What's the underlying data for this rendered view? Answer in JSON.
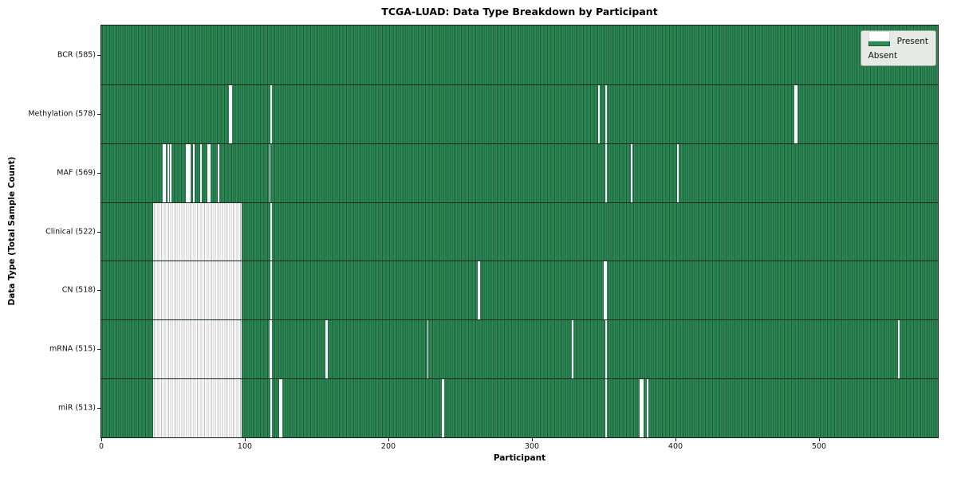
{
  "colors": {
    "present": "#2e8b57",
    "present_edge": "#1c5c39",
    "absent": "#ffffff",
    "absent_stripe": "#c3c3c3",
    "spine": "#1a1a1a",
    "legend_bg": "#e5eae5",
    "legend_border": "#9ea69e"
  },
  "chart_data": {
    "type": "heatmap",
    "title": "TCGA-LUAD: Data Type Breakdown by Participant",
    "xlabel": "Participant",
    "ylabel": "Data Type (Total Sample Count)",
    "legend": [
      "Present",
      "Absent"
    ],
    "legend_position": "upper right",
    "grid": false,
    "total_participants": 585,
    "xlim": [
      0,
      585
    ],
    "x_ticks": [
      0,
      100,
      200,
      300,
      400,
      500
    ],
    "rows": [
      {
        "name": "BCR",
        "label": "BCR (585)",
        "present_count": 585,
        "absent_runs": []
      },
      {
        "name": "Methylation",
        "label": "Methylation (578)",
        "present_count": 578,
        "absent_runs": [
          [
            89,
            90
          ],
          [
            118,
            118
          ],
          [
            346,
            346
          ],
          [
            351,
            351
          ],
          [
            483,
            484
          ]
        ]
      },
      {
        "name": "MAF",
        "label": "MAF (569)",
        "present_count": 569,
        "absent_runs": [
          [
            43,
            44
          ],
          [
            46,
            46
          ],
          [
            48,
            48
          ],
          [
            59,
            61
          ],
          [
            64,
            64
          ],
          [
            69,
            69
          ],
          [
            74,
            75
          ],
          [
            81,
            81
          ],
          [
            117,
            117
          ],
          [
            351,
            351
          ],
          [
            369,
            369
          ],
          [
            401,
            401
          ]
        ]
      },
      {
        "name": "Clinical",
        "label": "Clinical (522)",
        "present_count": 522,
        "absent_runs": [
          [
            36,
            97
          ],
          [
            118,
            118
          ]
        ]
      },
      {
        "name": "CN",
        "label": "CN (518)",
        "present_count": 518,
        "absent_runs": [
          [
            36,
            97
          ],
          [
            118,
            118
          ],
          [
            262,
            263
          ],
          [
            350,
            351
          ]
        ]
      },
      {
        "name": "mRNA",
        "label": "mRNA (515)",
        "present_count": 515,
        "absent_runs": [
          [
            36,
            97
          ],
          [
            117,
            118
          ],
          [
            156,
            157
          ],
          [
            227,
            227
          ],
          [
            328,
            328
          ],
          [
            351,
            351
          ],
          [
            555,
            555
          ]
        ]
      },
      {
        "name": "miR",
        "label": "miR (513)",
        "present_count": 513,
        "absent_runs": [
          [
            36,
            97
          ],
          [
            118,
            118
          ],
          [
            124,
            125
          ],
          [
            237,
            238
          ],
          [
            351,
            351
          ],
          [
            375,
            377
          ],
          [
            380,
            380
          ]
        ]
      }
    ]
  }
}
